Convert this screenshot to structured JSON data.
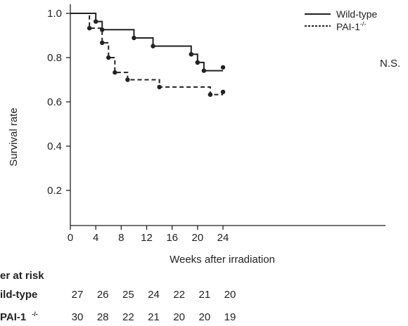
{
  "chart_data": {
    "type": "line",
    "subtype": "kaplan-meier step",
    "xlabel": "Weeks after irradiation",
    "ylabel": "Survival rate",
    "xlim": [
      0,
      25
    ],
    "ylim": [
      0,
      1.03
    ],
    "xticks": [
      "0",
      "4",
      "8",
      "12",
      "16",
      "20",
      "24"
    ],
    "xtick_values": [
      0,
      4,
      8,
      12,
      16,
      20,
      24
    ],
    "yticks": [
      "0.2",
      "0.4",
      "0.6",
      "0.8",
      "1.0"
    ],
    "ytick_values": [
      0.2,
      0.4,
      0.6,
      0.8,
      1.0
    ],
    "grid": false,
    "legend_position": "top-right",
    "annotation": "N.S.",
    "series": [
      {
        "name": "Wild-type",
        "line_style": "solid",
        "steps": [
          [
            0,
            1.0
          ],
          [
            4,
            0.963
          ],
          [
            5,
            0.926
          ],
          [
            10,
            0.889
          ],
          [
            13,
            0.852
          ],
          [
            19,
            0.815
          ],
          [
            20,
            0.778
          ],
          [
            21,
            0.741
          ],
          [
            24,
            0.741
          ]
        ],
        "censored": [
          [
            19,
            0.815
          ],
          [
            20,
            0.778
          ],
          [
            24,
            0.756
          ]
        ]
      },
      {
        "name": "PAI-1",
        "name_superscript": "-/-",
        "line_style": "dashed",
        "steps": [
          [
            0,
            1.0
          ],
          [
            3,
            0.933
          ],
          [
            5,
            0.867
          ],
          [
            6,
            0.8
          ],
          [
            7,
            0.733
          ],
          [
            9,
            0.7
          ],
          [
            14,
            0.667
          ],
          [
            22,
            0.633
          ],
          [
            24,
            0.633
          ]
        ],
        "censored": [
          [
            22,
            0.633
          ],
          [
            24,
            0.645
          ]
        ]
      }
    ]
  },
  "risk_table": {
    "title": "er at risk",
    "rows": [
      {
        "label": "ild-type",
        "superscript": "",
        "values": [
          "27",
          "26",
          "25",
          "24",
          "22",
          "21",
          "20"
        ]
      },
      {
        "label": "PAI-1",
        "superscript": "-/-",
        "values": [
          "30",
          "28",
          "22",
          "21",
          "20",
          "20",
          "19"
        ]
      }
    ]
  },
  "colors": {
    "line": "#222222",
    "background": "#ffffff"
  }
}
